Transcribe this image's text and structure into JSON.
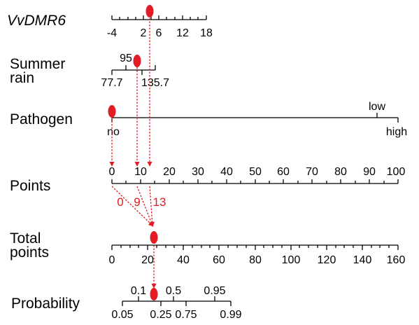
{
  "accent_color": "#e31b23",
  "rows": {
    "vvdmr6": {
      "label": "VvDMR6",
      "ticks": [
        "-4",
        "2",
        "6",
        "12",
        "18"
      ]
    },
    "summer_rain": {
      "label_line1": "Summer",
      "label_line2": "rain",
      "upper_ticks": [
        "95"
      ],
      "lower_ticks": [
        "77.7",
        "135.7"
      ]
    },
    "pathogen": {
      "label": "Pathogen",
      "upper_ticks": [
        "low"
      ],
      "lower_ticks": [
        "no",
        "high"
      ]
    },
    "points": {
      "label": "Points",
      "ticks": [
        "0",
        "10",
        "20",
        "30",
        "40",
        "50",
        "60",
        "70",
        "80",
        "90",
        "100"
      ]
    },
    "total_points": {
      "label_line1": "Total",
      "label_line2": "points",
      "ticks": [
        "0",
        "20",
        "40",
        "60",
        "80",
        "100",
        "120",
        "140",
        "160"
      ]
    },
    "probability": {
      "label": "Probability",
      "upper_ticks": [
        "0.1",
        "0.5",
        "0.95"
      ],
      "lower_ticks": [
        "0.05",
        "0.25",
        "0.75",
        "0.99"
      ]
    }
  },
  "contributions": [
    "0",
    "9",
    "13"
  ]
}
